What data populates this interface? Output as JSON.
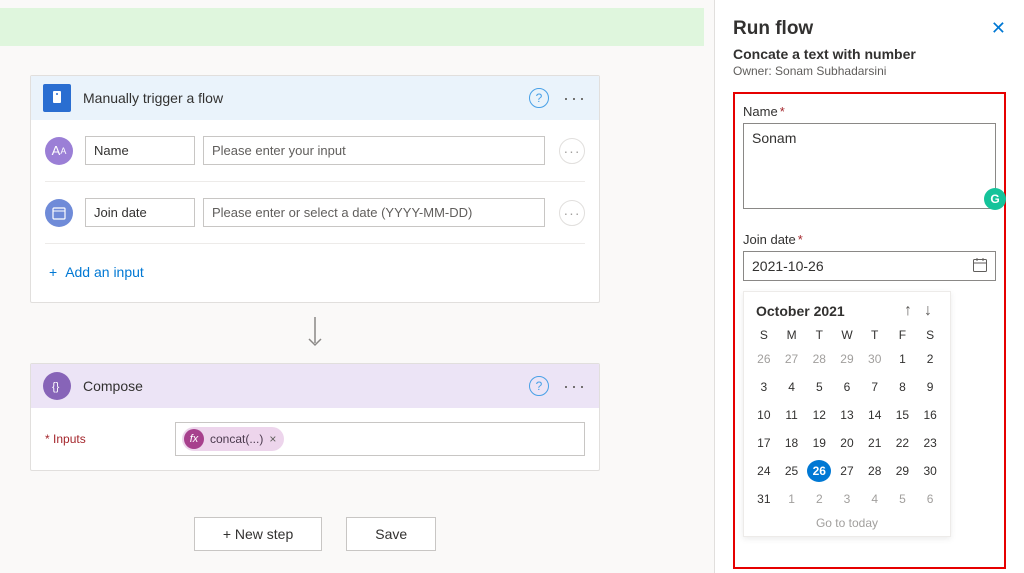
{
  "trigger": {
    "title": "Manually trigger a flow",
    "name_label": "Name",
    "name_placeholder": "Please enter your input",
    "date_label": "Join date",
    "date_placeholder": "Please enter or select a date (YYYY-MM-DD)",
    "add_input": "Add an input"
  },
  "compose": {
    "title": "Compose",
    "inputs_label": "Inputs",
    "expr": "concat(...)"
  },
  "actions": {
    "new_step": "+ New step",
    "save": "Save"
  },
  "panel": {
    "title": "Run flow",
    "subtitle": "Concate a text with number",
    "owner": "Owner: Sonam Subhadarsini",
    "name_label": "Name",
    "name_value": "Sonam",
    "date_label": "Join date",
    "date_value": "2021-10-26",
    "go_today": "Go to today"
  },
  "calendar": {
    "month": "October 2021",
    "dow": [
      "S",
      "M",
      "T",
      "W",
      "T",
      "F",
      "S"
    ],
    "days": [
      {
        "n": 26,
        "out": true
      },
      {
        "n": 27,
        "out": true
      },
      {
        "n": 28,
        "out": true
      },
      {
        "n": 29,
        "out": true
      },
      {
        "n": 30,
        "out": true
      },
      {
        "n": 1,
        "out": false
      },
      {
        "n": 2,
        "out": false
      },
      {
        "n": 3,
        "out": false
      },
      {
        "n": 4,
        "out": false
      },
      {
        "n": 5,
        "out": false
      },
      {
        "n": 6,
        "out": false
      },
      {
        "n": 7,
        "out": false
      },
      {
        "n": 8,
        "out": false
      },
      {
        "n": 9,
        "out": false
      },
      {
        "n": 10,
        "out": false
      },
      {
        "n": 11,
        "out": false
      },
      {
        "n": 12,
        "out": false
      },
      {
        "n": 13,
        "out": false
      },
      {
        "n": 14,
        "out": false
      },
      {
        "n": 15,
        "out": false
      },
      {
        "n": 16,
        "out": false
      },
      {
        "n": 17,
        "out": false
      },
      {
        "n": 18,
        "out": false
      },
      {
        "n": 19,
        "out": false
      },
      {
        "n": 20,
        "out": false
      },
      {
        "n": 21,
        "out": false
      },
      {
        "n": 22,
        "out": false
      },
      {
        "n": 23,
        "out": false
      },
      {
        "n": 24,
        "out": false
      },
      {
        "n": 25,
        "out": false
      },
      {
        "n": 26,
        "out": false,
        "sel": true
      },
      {
        "n": 27,
        "out": false
      },
      {
        "n": 28,
        "out": false
      },
      {
        "n": 29,
        "out": false
      },
      {
        "n": 30,
        "out": false
      },
      {
        "n": 31,
        "out": false
      },
      {
        "n": 1,
        "out": true
      },
      {
        "n": 2,
        "out": true
      },
      {
        "n": 3,
        "out": true
      },
      {
        "n": 4,
        "out": true
      },
      {
        "n": 5,
        "out": true
      },
      {
        "n": 6,
        "out": true
      }
    ]
  }
}
